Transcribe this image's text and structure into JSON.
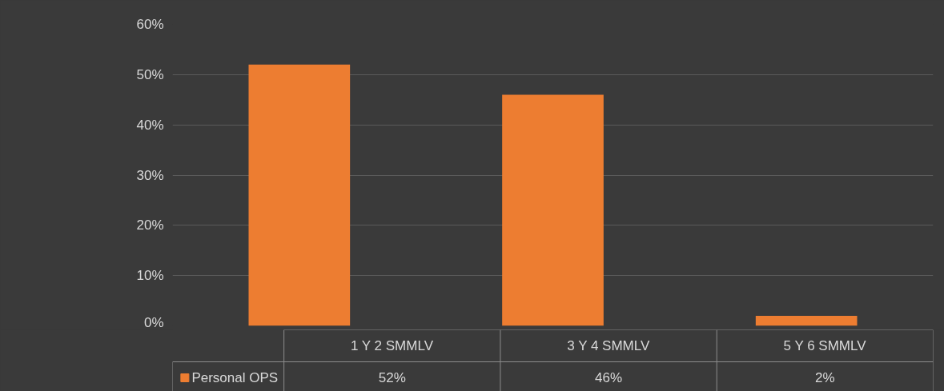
{
  "chart_data": {
    "type": "bar",
    "categories": [
      "1 Y 2 SMMLV",
      "3 Y 4 SMMLV",
      "5 Y 6 SMMLV"
    ],
    "series": [
      {
        "name": "Personal OPS",
        "color": "#ed7d31",
        "values": [
          52,
          46,
          2
        ],
        "value_labels": [
          "52%",
          "46%",
          "2%"
        ]
      }
    ],
    "ylim": [
      0,
      60
    ],
    "yticks": [
      {
        "value": 0,
        "label": "0%"
      },
      {
        "value": 10,
        "label": "10%"
      },
      {
        "value": 20,
        "label": "20%"
      },
      {
        "value": 30,
        "label": "30%"
      },
      {
        "value": 40,
        "label": "40%"
      },
      {
        "value": 50,
        "label": "50%"
      },
      {
        "value": 60,
        "label": "60%"
      }
    ],
    "grid": "y",
    "legend": "bottom"
  }
}
